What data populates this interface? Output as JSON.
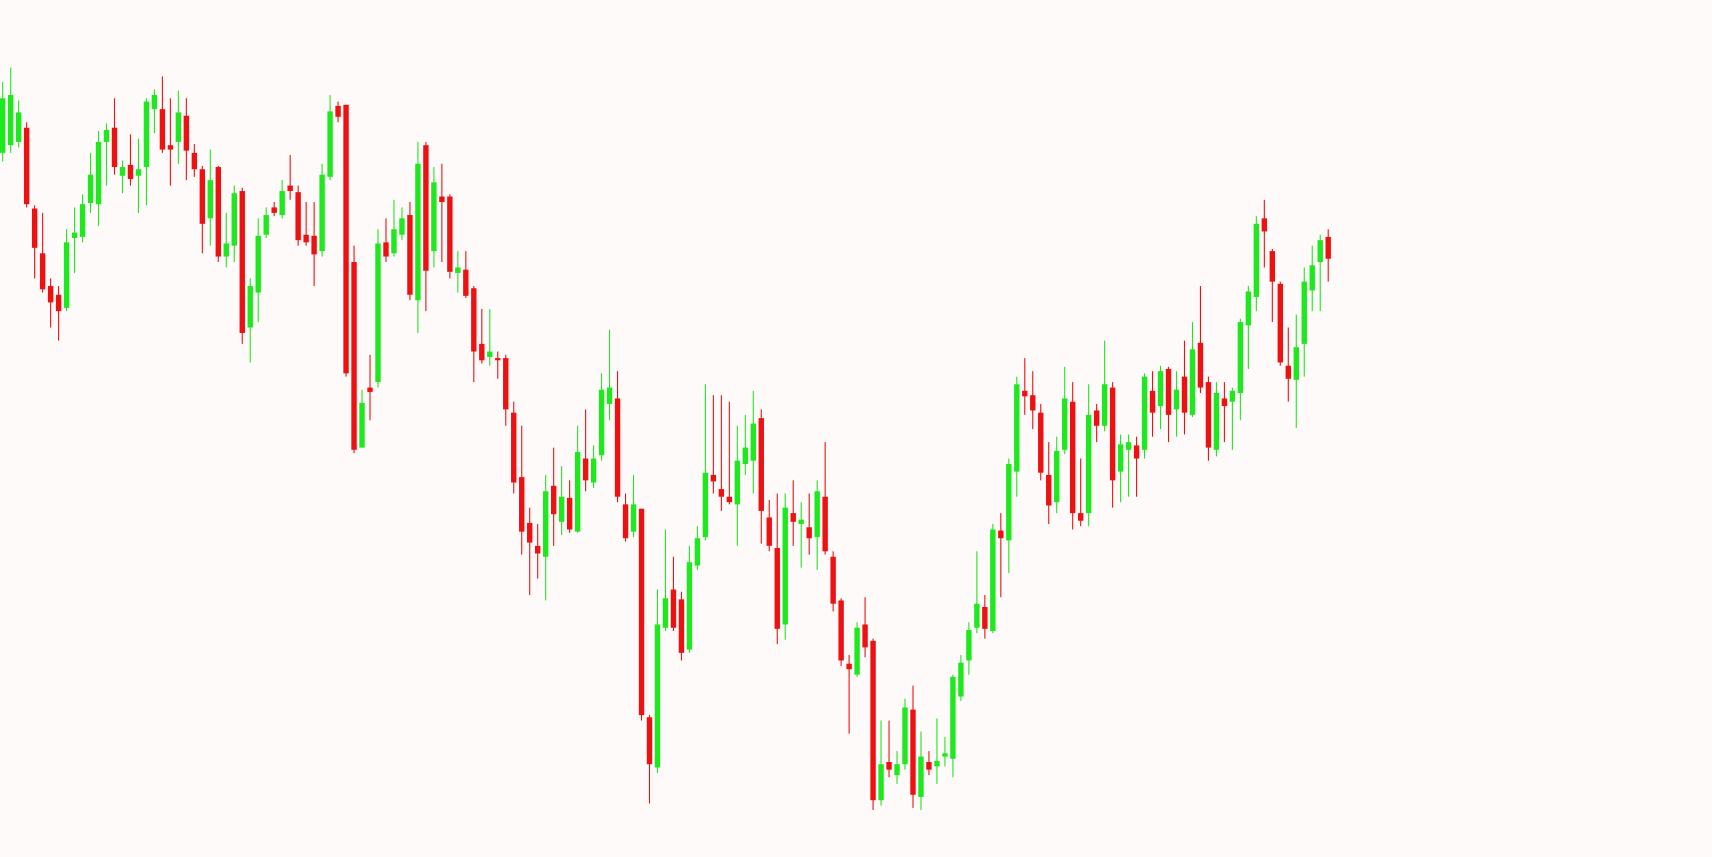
{
  "chart_data": {
    "type": "candlestick",
    "up_color": "#1ee81e",
    "down_color": "#ee1111",
    "ylim": [
      15,
      800
    ],
    "open": [
      660,
      667,
      670,
      683,
      609,
      568,
      538,
      530,
      518,
      582,
      583,
      614,
      613,
      670,
      683,
      639,
      649,
      639,
      647,
      700,
      700,
      667,
      670,
      694,
      660,
      645,
      600,
      647,
      565,
      575,
      625,
      500,
      532,
      585,
      610,
      603,
      630,
      624,
      585,
      584,
      570,
      638,
      703,
      704,
      560,
      390,
      445,
      450,
      578,
      568,
      585,
      603,
      525,
      667,
      570,
      620,
      620,
      550,
      553,
      536,
      485,
      473,
      472,
      472,
      422,
      363,
      321,
      300,
      290,
      355,
      322,
      344,
      313,
      380,
      358,
      383,
      430,
      435,
      338,
      313,
      334,
      143,
      97,
      225,
      260,
      251,
      205,
      282,
      308,
      365,
      352,
      345,
      338,
      375,
      378,
      417,
      326,
      298,
      228,
      330,
      320,
      317,
      308,
      345,
      290,
      250,
      192,
      182,
      228,
      213,
      67,
      102,
      90,
      100,
      150,
      70,
      102,
      98,
      107,
      105,
      162,
      195,
      225,
      244,
      222,
      314,
      305,
      368,
      442,
      438,
      422,
      365,
      340,
      388,
      432,
      330,
      330,
      424,
      410,
      445,
      368,
      388,
      392,
      388,
      442,
      428,
      462,
      425,
      455,
      420,
      486,
      450,
      388,
      435,
      432,
      440,
      502,
      528,
      600,
      570,
      540,
      465,
      452,
      485,
      534,
      560,
      583
    ],
    "high": [
      725,
      738,
      708,
      688,
      612,
      605,
      545,
      538,
      590,
      610,
      622,
      660,
      680,
      687,
      710,
      653,
      677,
      673,
      710,
      718,
      730,
      710,
      717,
      710,
      668,
      648,
      663,
      648,
      605,
      630,
      628,
      545,
      600,
      610,
      615,
      635,
      658,
      630,
      615,
      615,
      650,
      713,
      707,
      704,
      575,
      443,
      475,
      590,
      600,
      617,
      610,
      615,
      670,
      670,
      647,
      650,
      622,
      570,
      570,
      538,
      517,
      517,
      478,
      475,
      432,
      410,
      335,
      320,
      365,
      390,
      373,
      360,
      410,
      425,
      392,
      458,
      498,
      460,
      348,
      365,
      334,
      145,
      260,
      315,
      290,
      258,
      300,
      318,
      448,
      438,
      438,
      432,
      410,
      420,
      442,
      425,
      342,
      348,
      348,
      360,
      340,
      348,
      360,
      395,
      295,
      252,
      200,
      230,
      253,
      215,
      140,
      140,
      112,
      160,
      172,
      130,
      112,
      142,
      125,
      182,
      200,
      230,
      295,
      255,
      320,
      330,
      380,
      455,
      472,
      460,
      430,
      395,
      400,
      464,
      450,
      380,
      448,
      430,
      488,
      450,
      402,
      402,
      400,
      458,
      460,
      465,
      464,
      460,
      488,
      505,
      538,
      455,
      450,
      450,
      445,
      508,
      538,
      602,
      617,
      572,
      542,
      500,
      512,
      555,
      575,
      585,
      590
    ],
    "low": [
      652,
      660,
      665,
      610,
      545,
      532,
      500,
      488,
      515,
      550,
      578,
      605,
      593,
      630,
      640,
      623,
      630,
      605,
      612,
      678,
      660,
      630,
      650,
      635,
      638,
      568,
      575,
      560,
      555,
      560,
      485,
      468,
      505,
      582,
      602,
      600,
      617,
      575,
      575,
      538,
      565,
      635,
      688,
      455,
      385,
      390,
      415,
      445,
      560,
      565,
      580,
      525,
      495,
      515,
      555,
      560,
      545,
      532,
      527,
      450,
      467,
      465,
      453,
      410,
      348,
      292,
      255,
      270,
      250,
      300,
      310,
      312,
      312,
      350,
      353,
      378,
      415,
      340,
      304,
      308,
      140,
      64,
      92,
      222,
      222,
      195,
      202,
      278,
      305,
      348,
      332,
      338,
      300,
      365,
      348,
      302,
      295,
      210,
      214,
      300,
      280,
      292,
      278,
      292,
      240,
      190,
      128,
      180,
      198,
      58,
      62,
      88,
      82,
      95,
      60,
      58,
      90,
      82,
      98,
      88,
      158,
      182,
      220,
      215,
      220,
      253,
      275,
      345,
      420,
      407,
      360,
      320,
      330,
      384,
      315,
      318,
      318,
      395,
      405,
      335,
      340,
      345,
      345,
      380,
      400,
      407,
      395,
      400,
      402,
      418,
      440,
      378,
      382,
      395,
      388,
      415,
      462,
      515,
      555,
      505,
      465,
      432,
      408,
      455,
      515,
      515,
      542
    ],
    "close": [
      710,
      713,
      697,
      613,
      573,
      535,
      523,
      515,
      578,
      587,
      613,
      640,
      670,
      681,
      647,
      647,
      636,
      645,
      707,
      713,
      663,
      663,
      697,
      662,
      645,
      595,
      635,
      565,
      577,
      623,
      495,
      538,
      584,
      603,
      605,
      625,
      625,
      580,
      578,
      567,
      640,
      698,
      693,
      458,
      388,
      431,
      441,
      577,
      565,
      590,
      600,
      530,
      650,
      552,
      633,
      615,
      551,
      555,
      529,
      478,
      470,
      478,
      470,
      425,
      358,
      313,
      303,
      293,
      350,
      329,
      345,
      315,
      386,
      360,
      380,
      443,
      445,
      345,
      307,
      338,
      145,
      100,
      228,
      252,
      225,
      202,
      285,
      307,
      367,
      359,
      345,
      340,
      378,
      390,
      412,
      332,
      300,
      224,
      335,
      322,
      324,
      307,
      350,
      295,
      247,
      195,
      187,
      225,
      207,
      67,
      100,
      95,
      100,
      152,
      72,
      107,
      95,
      103,
      110,
      180,
      193,
      223,
      247,
      224,
      315,
      307,
      375,
      448,
      437,
      424,
      367,
      337,
      387,
      435,
      330,
      323,
      420,
      410,
      448,
      360,
      393,
      395,
      380,
      455,
      422,
      460,
      420,
      443,
      422,
      480,
      445,
      390,
      440,
      428,
      442,
      505,
      533,
      595,
      588,
      542,
      468,
      453,
      482,
      542,
      557,
      580,
      563
    ]
  }
}
